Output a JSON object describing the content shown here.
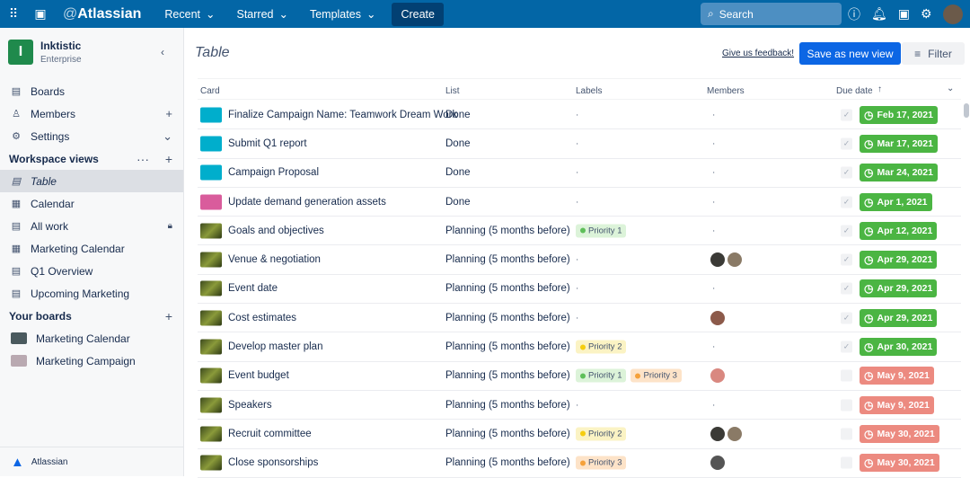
{
  "topbar": {
    "logo_at": "@",
    "logo": "Atlassian",
    "nav": [
      "Recent",
      "Starred",
      "Templates"
    ],
    "create": "Create",
    "search": "Search",
    "brand_color": "#0366a6"
  },
  "sidebar": {
    "workspace": "Inktistic",
    "plan": "Enterprise",
    "initial": "I",
    "items": [
      {
        "label": "Boards",
        "icon": "board-icon"
      },
      {
        "label": "Members",
        "icon": "person-icon"
      },
      {
        "label": "Settings",
        "icon": "gear-icon"
      }
    ],
    "views_heading": "Workspace views",
    "views": [
      {
        "label": "Table",
        "icon": "table-icon",
        "active": true
      },
      {
        "label": "Calendar",
        "icon": "calendar-icon"
      },
      {
        "label": "All work",
        "icon": "table-icon",
        "locked": true
      },
      {
        "label": "Marketing Calendar",
        "icon": "calendar-icon"
      },
      {
        "label": "Q1 Overview",
        "icon": "table-icon"
      },
      {
        "label": "Upcoming Marketing",
        "icon": "table-icon"
      }
    ],
    "boards_heading": "Your boards",
    "boards": [
      {
        "label": "Marketing Calendar",
        "color": "#4a5a5e"
      },
      {
        "label": "Marketing Campaign",
        "color": "#b9a9b1"
      }
    ],
    "footer": "Atlassian"
  },
  "main": {
    "title": "Table",
    "feedback": "Give us feedback!",
    "save_view": "Save as new view",
    "filter": "Filter",
    "columns": [
      "Card",
      "List",
      "Labels",
      "Members",
      "Due date"
    ],
    "rows": [
      {
        "card": "Finalize Campaign Name: Teamwork Dream Work",
        "cover": "#00aecc",
        "list": "Done",
        "labels": [],
        "members": [],
        "done": true,
        "due": "Feb 17, 2021",
        "due_color": "#4bb543"
      },
      {
        "card": "Submit Q1 report",
        "cover": "#00aecc",
        "list": "Done",
        "labels": [],
        "members": [],
        "done": true,
        "due": "Mar 17, 2021",
        "due_color": "#4bb543"
      },
      {
        "card": "Campaign Proposal",
        "cover": "#00aecc",
        "list": "Done",
        "labels": [],
        "members": [],
        "done": true,
        "due": "Mar 24, 2021",
        "due_color": "#4bb543"
      },
      {
        "card": "Update demand generation assets",
        "cover": "#d95c9c",
        "list": "Done",
        "labels": [],
        "members": [],
        "done": true,
        "due": "Apr 1, 2021",
        "due_color": "#4bb543"
      },
      {
        "card": "Goals and objectives",
        "cover": "img",
        "list": "Planning (5 months before)",
        "labels": [
          "Priority 1"
        ],
        "members": [],
        "done": true,
        "due": "Apr 12, 2021",
        "due_color": "#4bb543"
      },
      {
        "card": "Venue & negotiation",
        "cover": "img",
        "list": "Planning (5 months before)",
        "labels": [],
        "members": [
          "#3b3a36",
          "#8a7a66"
        ],
        "done": true,
        "due": "Apr 29, 2021",
        "due_color": "#4bb543"
      },
      {
        "card": "Event date",
        "cover": "img",
        "list": "Planning (5 months before)",
        "labels": [],
        "members": [],
        "done": true,
        "due": "Apr 29, 2021",
        "due_color": "#4bb543"
      },
      {
        "card": "Cost estimates",
        "cover": "img",
        "list": "Planning (5 months before)",
        "labels": [],
        "members": [
          "#8c5a4a"
        ],
        "done": true,
        "due": "Apr 29, 2021",
        "due_color": "#4bb543"
      },
      {
        "card": "Develop master plan",
        "cover": "img",
        "list": "Planning (5 months before)",
        "labels": [
          "Priority 2"
        ],
        "members": [],
        "done": true,
        "due": "Apr 30, 2021",
        "due_color": "#4bb543"
      },
      {
        "card": "Event budget",
        "cover": "img",
        "list": "Planning (5 months before)",
        "labels": [
          "Priority 1",
          "Priority 3"
        ],
        "members": [
          "#d98880"
        ],
        "done": false,
        "due": "May 9, 2021",
        "due_color": "#ec8a80"
      },
      {
        "card": "Speakers",
        "cover": "img",
        "list": "Planning (5 months before)",
        "labels": [],
        "members": [],
        "done": false,
        "due": "May 9, 2021",
        "due_color": "#ec8a80"
      },
      {
        "card": "Recruit committee",
        "cover": "img",
        "list": "Planning (5 months before)",
        "labels": [
          "Priority 2"
        ],
        "members": [
          "#3b3a36",
          "#8a7a66"
        ],
        "done": false,
        "due": "May 30, 2021",
        "due_color": "#ec8a80"
      },
      {
        "card": "Close sponsorships",
        "cover": "img",
        "list": "Planning (5 months before)",
        "labels": [
          "Priority 3"
        ],
        "members": [
          "#555"
        ],
        "done": false,
        "due": "May 30, 2021",
        "due_color": "#ec8a80"
      }
    ]
  },
  "label_colors": {
    "Priority 1": {
      "bg": "#dcf3d9",
      "dot": "#5fbf5a"
    },
    "Priority 2": {
      "bg": "#fbf3c4",
      "dot": "#f5cd10"
    },
    "Priority 3": {
      "bg": "#fde3c8",
      "dot": "#f5a13b"
    }
  }
}
